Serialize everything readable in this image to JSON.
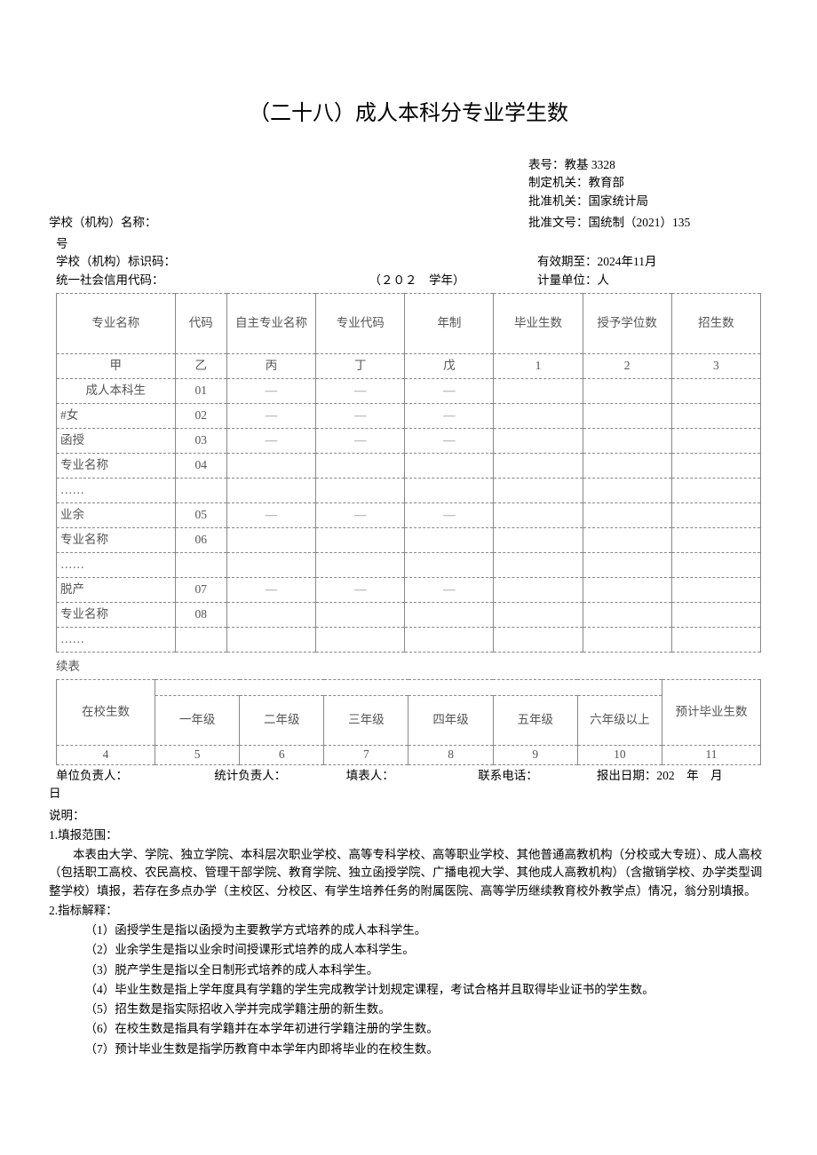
{
  "title": "（二十八）成人本科分专业学生数",
  "meta": {
    "form_no_label": "表号：教基 3328",
    "issuer_label": "制定机关：教育部",
    "approver_label": "批准机关：国家统计局",
    "school_name_label": "学校（机构）名称：",
    "approval_no_label": "批准文号：国统制（2021）135",
    "hao": "号",
    "school_code_label": "学校（机构）标识码：",
    "valid_until_label": "有效期至：2024年11月",
    "credit_code_label": "统一社会信用代码：",
    "year_label": "（２０２　学年）",
    "unit_label": "计量单位：人"
  },
  "table1": {
    "headers": [
      "专业名称",
      "代码",
      "自主专业名称",
      "专业代码",
      "年制",
      "毕业生数",
      "授予学位数",
      "招生数"
    ],
    "sub": [
      "甲",
      "乙",
      "丙",
      "丁",
      "戊",
      "1",
      "2",
      "3"
    ],
    "rows": [
      {
        "label": "成人本科生",
        "code": "01",
        "c": [
          "—",
          "—",
          "—",
          "",
          "",
          ""
        ]
      },
      {
        "label": "#女",
        "code": "02",
        "c": [
          "—",
          "—",
          "—",
          "",
          "",
          ""
        ],
        "indent": 2
      },
      {
        "label": "函授",
        "code": "03",
        "c": [
          "—",
          "—",
          "—",
          "",
          "",
          ""
        ],
        "indent": 1
      },
      {
        "label": "专业名称",
        "code": "04",
        "c": [
          "",
          "",
          "",
          "",
          "",
          ""
        ],
        "indent": 2
      },
      {
        "label": "……",
        "code": "",
        "c": [
          "",
          "",
          "",
          "",
          "",
          ""
        ],
        "indent": 3
      },
      {
        "label": "业余",
        "code": "05",
        "c": [
          "—",
          "—",
          "—",
          "",
          "",
          ""
        ],
        "indent": 1
      },
      {
        "label": "专业名称",
        "code": "06",
        "c": [
          "",
          "",
          "",
          "",
          "",
          ""
        ],
        "indent": 2
      },
      {
        "label": "……",
        "code": "",
        "c": [
          "",
          "",
          "",
          "",
          "",
          ""
        ],
        "indent": 3
      },
      {
        "label": "脱产",
        "code": "07",
        "c": [
          "—",
          "—",
          "—",
          "",
          "",
          ""
        ],
        "indent": 1
      },
      {
        "label": "专业名称",
        "code": "08",
        "c": [
          "",
          "",
          "",
          "",
          "",
          ""
        ],
        "indent": 2
      },
      {
        "label": "……",
        "code": "",
        "c": [
          "",
          "",
          "",
          "",
          "",
          ""
        ],
        "indent": 3
      }
    ]
  },
  "cont_label": "续表",
  "table2": {
    "h1": "在校生数",
    "h2": [
      "一年级",
      "二年级",
      "三年级",
      "四年级",
      "五年级",
      "六年级以上"
    ],
    "h_last": "预计毕业生数",
    "nums": [
      "4",
      "5",
      "6",
      "7",
      "8",
      "9",
      "10",
      "11"
    ]
  },
  "footer": {
    "a": "单位负责人：",
    "b": "统计负责人：",
    "c": "填表人：",
    "d": "联系电话：",
    "e": "报出日期：202　年　月",
    "f": "日"
  },
  "notes": {
    "title": "说明：",
    "n1_t": "1.填报范围：",
    "n1_p": "本表由大学、学院、独立学院、本科层次职业学校、高等专科学校、高等职业学校、其他普通高教机构（分校或大专班）、成人高校（包括职工高校、农民高校、管理干部学院、教育学院、独立函授学院、广播电视大学、其他成人高教机构）（含撤销学校、办学类型调整学校）填报，若存在多点办学（主校区、分校区、有学生培养任务的附属医院、高等学历继续教育校外教学点）情况，翁分别填报。",
    "n2_t": "2.指标解释：",
    "i1": "（1）函授学生是指以函授为主要教学方式培养的成人本科学生。",
    "i2": "（2）业余学生是指以业余时间授课形式培养的成人本科学生。",
    "i3": "（3）脱产学生是指以全日制形式培养的成人本科学生。",
    "i4": "（4）毕业生数是指上学年度具有学籍的学生完成教学计划规定课程，考试合格并且取得毕业证书的学生数。",
    "i5": "（5）招生数是指实际招收入学并完成学籍注册的新生数。",
    "i6": "（6）在校生数是指具有学籍并在本学年初进行学籍注册的学生数。",
    "i7": "（7）预计毕业生数是指学历教育中本学年内即将毕业的在校生数。"
  }
}
